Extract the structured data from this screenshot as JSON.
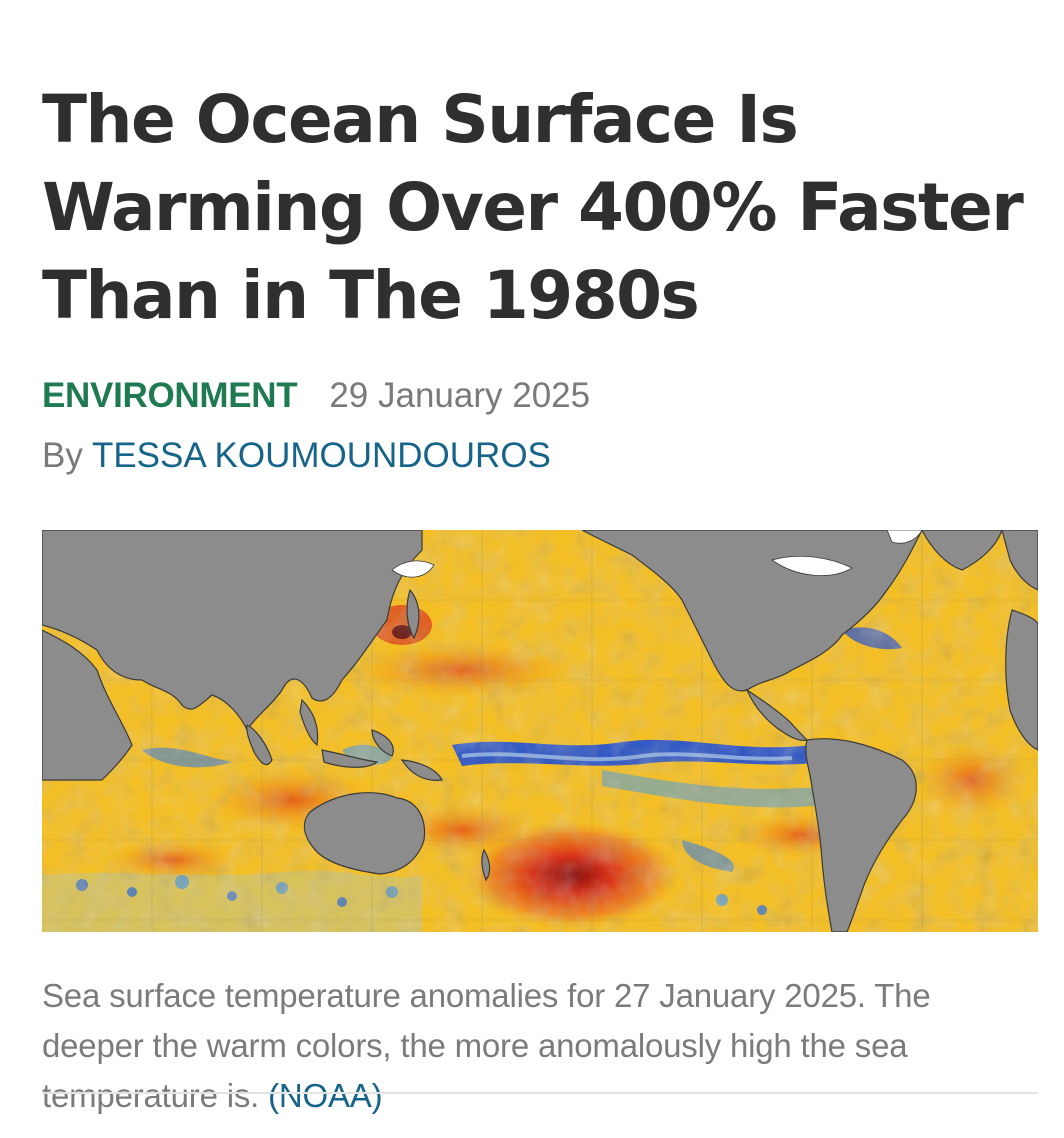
{
  "article": {
    "headline": "The Ocean Surface Is Warming Over 400% Faster Than in The 1980s",
    "category": "ENVIRONMENT",
    "date": "29 January 2025",
    "byline_prefix": "By",
    "author": "TESSA KOUMOUNDOUROS",
    "image": {
      "caption": "Sea surface temperature anomalies for 27 January 2025. The deeper the warm colors, the more anomalously high the sea temperature is.",
      "credit": "(NOAA)"
    }
  },
  "colors": {
    "headline": "#2f2f2f",
    "category": "#1f7a52",
    "meta_text": "#7a7a7a",
    "link": "#17648a",
    "land": "#8c8c8c",
    "ocean_warm": "#f2b51c",
    "ocean_hot": "#d9341a",
    "ocean_cold": "#1f4fd6"
  }
}
